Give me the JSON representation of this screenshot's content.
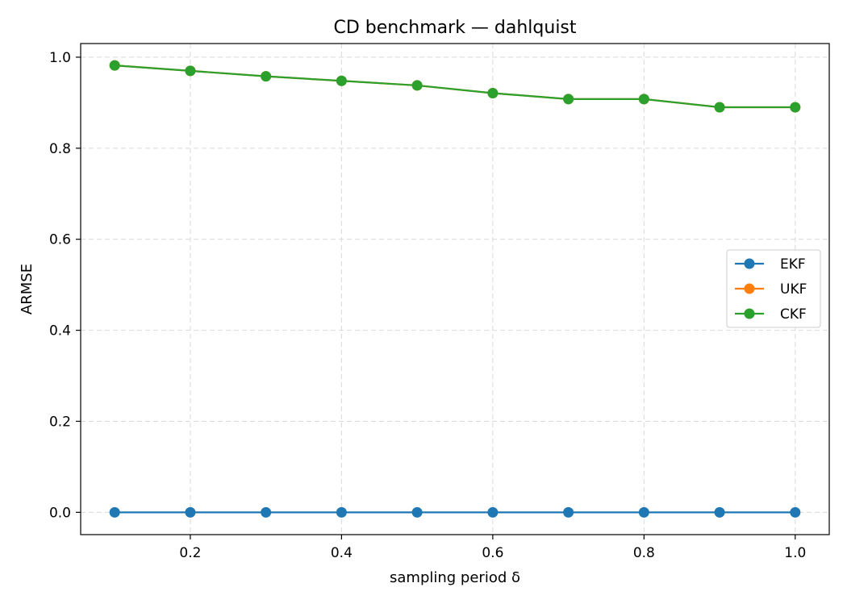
{
  "chart_data": {
    "type": "line",
    "title": "CD benchmark — dahlquist",
    "xlabel": "sampling period δ",
    "ylabel": "ARMSE",
    "xlim": [
      0.055,
      1.045
    ],
    "ylim": [
      -0.049,
      1.03
    ],
    "xticks": [
      0.2,
      0.4,
      0.6,
      0.8,
      1.0
    ],
    "xtick_labels": [
      "0.2",
      "0.4",
      "0.6",
      "0.8",
      "1.0"
    ],
    "yticks": [
      0.0,
      0.2,
      0.4,
      0.6,
      0.8,
      1.0
    ],
    "ytick_labels": [
      "0.0",
      "0.2",
      "0.4",
      "0.6",
      "0.8",
      "1.0"
    ],
    "grid": true,
    "legend_position": "center-right",
    "x": [
      0.1,
      0.2,
      0.3,
      0.4,
      0.5,
      0.6,
      0.7,
      0.8,
      0.9,
      1.0
    ],
    "series": [
      {
        "name": "EKF",
        "color": "#1f77b4",
        "marker": "circle",
        "values": [
          0,
          0,
          0,
          0,
          0,
          0,
          0,
          0,
          0,
          0
        ]
      },
      {
        "name": "UKF",
        "color": "#ff7f0e",
        "marker": "circle",
        "values": [
          0.982,
          0.97,
          0.958,
          0.948,
          0.938,
          0.921,
          0.908,
          0.908,
          0.89,
          0.89
        ]
      },
      {
        "name": "CKF",
        "color": "#2ca02c",
        "marker": "circle",
        "values": [
          0.982,
          0.97,
          0.958,
          0.948,
          0.938,
          0.921,
          0.908,
          0.908,
          0.89,
          0.89
        ]
      }
    ]
  }
}
